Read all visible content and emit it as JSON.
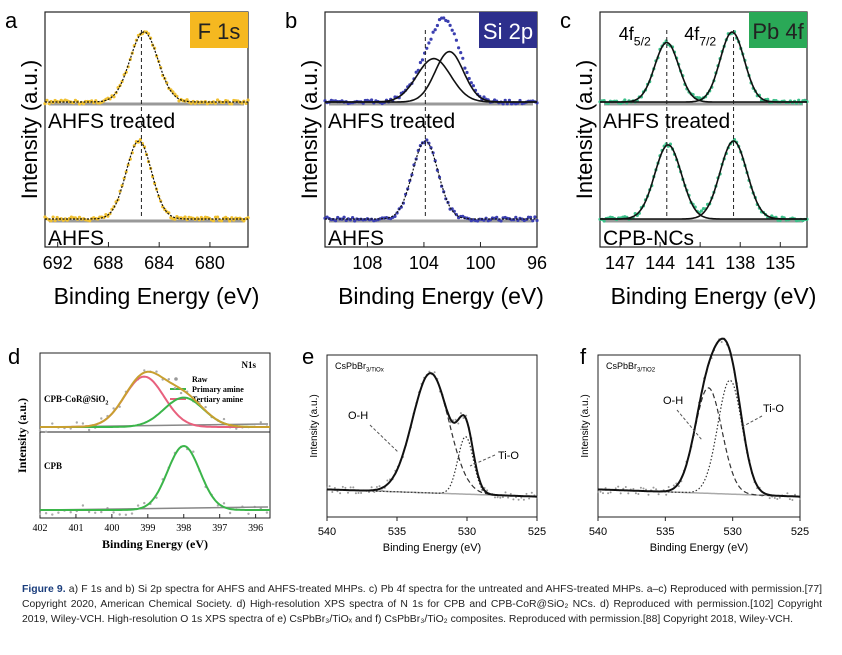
{
  "figure": {
    "caption_lead": "Figure 9.",
    "caption": "a) F 1s and b) Si 2p spectra for AHFS and AHFS-treated MHPs. c) Pb 4f spectra for the untreated and AHFS-treated MHPs. a–c) Reproduced with permission.[77] Copyright 2020, American Chemical Society. d) High-resolution XPS spectra of N 1s for CPB and CPB-CoR@SiO₂ NCs. d) Reproduced with permission.[102] Copyright 2019, Wiley-VCH. High-resolution O 1s XPS spectra of e) CsPbBr₃/TiOₓ and f) CsPbBr₃/TiO₂ composites. Reproduced with permission.[88] Copyright 2018, Wiley-VCH."
  },
  "colors": {
    "data_yellow": "#f0c030",
    "data_blue": "#3b3fb0",
    "data_green": "#3cc08a",
    "f1s_tag": "#f5b820",
    "si2p_tag": "#2d2f8c",
    "pb4f_tag": "#2aa957",
    "primary_amine": "#3bb54a",
    "tertiary_amine": "#e8607d",
    "sum_curve": "#c8a030",
    "caption_lead": "#1a3d7c"
  },
  "chart_data": [
    {
      "panel": "a",
      "type": "line",
      "tag": "F 1s",
      "xlabel": "Binding Energy (eV)",
      "ylabel": "Intensity (a.u.)",
      "xlim": [
        693,
        677
      ],
      "xticks": [
        692,
        688,
        684,
        680
      ],
      "spectra": [
        {
          "label": "AHFS treated",
          "peaks": [
            {
              "center": 685.2,
              "height": 1.0,
              "width": 1.1
            }
          ]
        },
        {
          "label": "AHFS",
          "peaks": [
            {
              "center": 685.6,
              "height": 1.0,
              "width": 1.0
            }
          ]
        }
      ],
      "dashed_marker": 685.4
    },
    {
      "panel": "b",
      "type": "line",
      "tag": "Si 2p",
      "xlabel": "Binding Energy (eV)",
      "ylabel": "Intensity (a.u.)",
      "xlim": [
        111,
        96
      ],
      "xticks": [
        108,
        104,
        100,
        96
      ],
      "spectra": [
        {
          "label": "AHFS treated",
          "peaks": [
            {
              "center": 103.3,
              "height": 0.62,
              "width": 1.2
            },
            {
              "center": 102.2,
              "height": 0.72,
              "width": 1.0
            }
          ]
        },
        {
          "label": "AHFS",
          "peaks": [
            {
              "center": 103.9,
              "height": 1.0,
              "width": 0.9
            }
          ]
        }
      ],
      "dashed_marker": 103.9
    },
    {
      "panel": "c",
      "type": "line",
      "tag": "Pb 4f",
      "xlabel": "Binding Energy (eV)",
      "ylabel": "Intensity (a.u.)",
      "xlim": [
        148.5,
        133
      ],
      "xticks": [
        147,
        144,
        141,
        138,
        135
      ],
      "peak_labels": [
        "4f5/2",
        "4f7/2"
      ],
      "spectra": [
        {
          "label": "AHFS treated",
          "peaks": [
            {
              "center": 143.5,
              "height": 0.85,
              "width": 0.9
            },
            {
              "center": 138.6,
              "height": 1.0,
              "width": 0.9
            }
          ]
        },
        {
          "label": "CPB-NCs",
          "peaks": [
            {
              "center": 143.4,
              "height": 0.95,
              "width": 1.0
            },
            {
              "center": 138.5,
              "height": 1.0,
              "width": 1.0
            }
          ]
        }
      ],
      "dashed_markers": [
        143.5,
        138.5
      ]
    },
    {
      "panel": "d",
      "type": "line",
      "title": "N1s",
      "xlabel": "Binding Energy (eV)",
      "ylabel": "Intensity (a.u.)",
      "xlim": [
        402,
        395.6
      ],
      "xticks": [
        402,
        401,
        400,
        399,
        398,
        397,
        396
      ],
      "legend": [
        "Raw",
        "Primary amine",
        "Tertiary amine"
      ],
      "spectra": [
        {
          "label": "CPB-CoR@SiO2",
          "peaks": [
            {
              "center": 399.1,
              "height": 0.72,
              "width": 0.55,
              "name": "Tertiary amine"
            },
            {
              "center": 398.0,
              "height": 0.42,
              "width": 0.55,
              "name": "Primary amine"
            }
          ]
        },
        {
          "label": "CPB",
          "peaks": [
            {
              "center": 398.0,
              "height": 0.8,
              "width": 0.45,
              "name": "Primary amine"
            }
          ]
        }
      ]
    },
    {
      "panel": "e",
      "type": "line",
      "title": "CsPbBr3/TiOx",
      "xlabel": "Binding Energy (eV)",
      "ylabel": "Intensity (a.u.)",
      "xlim": [
        540,
        525
      ],
      "xticks": [
        540,
        535,
        530,
        525
      ],
      "annotations": [
        "O-H",
        "Ti-O"
      ],
      "peaks": [
        {
          "name": "O-H",
          "center": 532.6,
          "height": 1.0,
          "width": 1.3
        },
        {
          "name": "Ti-O",
          "center": 530.1,
          "height": 0.48,
          "width": 0.55
        }
      ]
    },
    {
      "panel": "f",
      "type": "line",
      "title": "CsPbBr3/TiO2",
      "xlabel": "Binding Energy (eV)",
      "ylabel": "Intensity (a.u.)",
      "xlim": [
        540,
        525
      ],
      "xticks": [
        540,
        535,
        530,
        525
      ],
      "annotations": [
        "O-H",
        "Ti-O"
      ],
      "peaks": [
        {
          "name": "O-H",
          "center": 531.8,
          "height": 0.88,
          "width": 1.0
        },
        {
          "name": "Ti-O",
          "center": 530.2,
          "height": 0.95,
          "width": 0.9
        }
      ]
    }
  ]
}
